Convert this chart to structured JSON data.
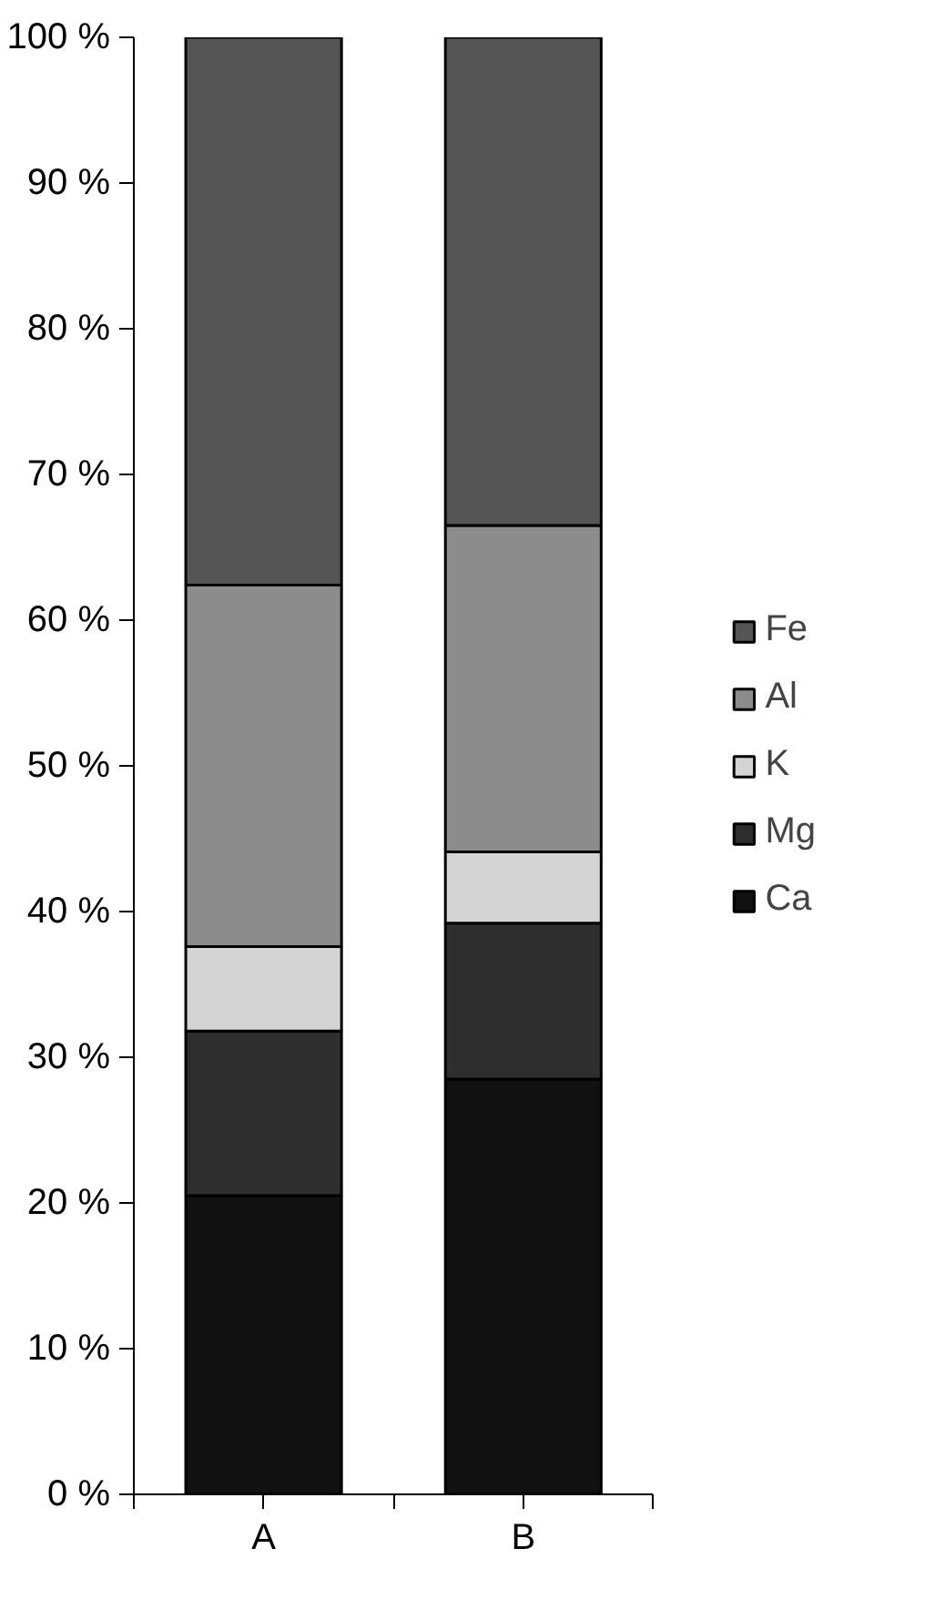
{
  "chart_data": {
    "type": "bar",
    "stacked": true,
    "categories": [
      "A",
      "B"
    ],
    "series": [
      {
        "name": "Ca",
        "color": "#111111",
        "values": [
          20.5,
          28.5
        ]
      },
      {
        "name": "Mg",
        "color": "#2e2e2e",
        "values": [
          11.3,
          10.7
        ]
      },
      {
        "name": "K",
        "color": "#d4d4d4",
        "values": [
          5.8,
          4.9
        ]
      },
      {
        "name": "Al",
        "color": "#8c8c8c",
        "values": [
          24.8,
          22.4
        ]
      },
      {
        "name": "Fe",
        "color": "#555555",
        "values": [
          37.6,
          33.5
        ]
      }
    ],
    "ylim": [
      0,
      100
    ],
    "yticks": [
      {
        "value": 0,
        "label": "0 %"
      },
      {
        "value": 10,
        "label": "10 %"
      },
      {
        "value": 20,
        "label": "20 %"
      },
      {
        "value": 30,
        "label": "30 %"
      },
      {
        "value": 40,
        "label": "40 %"
      },
      {
        "value": 50,
        "label": "50 %"
      },
      {
        "value": 60,
        "label": "60 %"
      },
      {
        "value": 70,
        "label": "70 %"
      },
      {
        "value": 80,
        "label": "80 %"
      },
      {
        "value": 90,
        "label": "90 %"
      },
      {
        "value": 100,
        "label": "100 %"
      }
    ],
    "grid": false,
    "legend": "right"
  }
}
